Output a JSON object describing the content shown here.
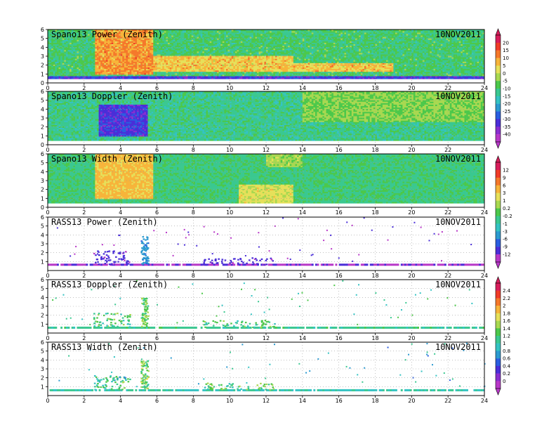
{
  "chart_data": [
    {
      "type": "heatmap",
      "title": "Spano13 Power (Zenith)",
      "date": "10NOV2011",
      "xlim": [
        0,
        24
      ],
      "ylim": [
        0,
        6
      ],
      "xticks": [
        0,
        2,
        4,
        6,
        8,
        10,
        12,
        14,
        16,
        18,
        20,
        22,
        24
      ],
      "yticks": [
        0,
        1,
        2,
        3,
        4,
        5,
        6
      ],
      "grid": true,
      "dense": true,
      "base": -10,
      "noise": 5,
      "features": [
        {
          "x0": 2.6,
          "x1": 5.8,
          "y0": 1.0,
          "y1": 6.0,
          "v": 8
        },
        {
          "x0": 5.8,
          "x1": 13.5,
          "y0": 1.3,
          "y1": 3.0,
          "v": 4
        },
        {
          "x0": 13.5,
          "x1": 19.0,
          "y0": 1.3,
          "y1": 2.2,
          "v": 4
        },
        {
          "x0": 0.0,
          "x1": 24.0,
          "y0": 0.4,
          "y1": 0.75,
          "v": -30
        }
      ]
    },
    {
      "type": "heatmap",
      "title": "Spano13 Doppler (Zenith)",
      "date": "10NOV2011",
      "xlim": [
        0,
        24
      ],
      "ylim": [
        0,
        6
      ],
      "xticks": [
        0,
        2,
        4,
        6,
        8,
        10,
        12,
        14,
        16,
        18,
        20,
        22,
        24
      ],
      "yticks": [
        0,
        1,
        2,
        3,
        4,
        5,
        6
      ],
      "grid": true,
      "dense": true,
      "base": -12,
      "noise": 4,
      "features": [
        {
          "x0": 2.8,
          "x1": 5.5,
          "y0": 1.0,
          "y1": 4.5,
          "v": -30
        },
        {
          "x0": 14.0,
          "x1": 24.0,
          "y0": 2.5,
          "y1": 6.0,
          "v": -5
        }
      ]
    },
    {
      "type": "heatmap",
      "title": "Spano13 Width (Zenith)",
      "date": "10NOV2011",
      "xlim": [
        0,
        24
      ],
      "ylim": [
        0,
        6
      ],
      "xticks": [
        0,
        2,
        4,
        6,
        8,
        10,
        12,
        14,
        16,
        18,
        20,
        22,
        24
      ],
      "yticks": [
        0,
        1,
        2,
        3,
        4,
        5,
        6
      ],
      "grid": true,
      "dense": true,
      "base": -1.5,
      "noise": 1.5,
      "features": [
        {
          "x0": 2.6,
          "x1": 5.8,
          "y0": 1.0,
          "y1": 6.0,
          "v": 6
        },
        {
          "x0": 10.5,
          "x1": 13.5,
          "y0": 0.5,
          "y1": 2.5,
          "v": 4
        },
        {
          "x0": 12.0,
          "x1": 14.0,
          "y0": 4.5,
          "y1": 6.0,
          "v": 2
        }
      ]
    },
    {
      "type": "scatter",
      "title": "RASS13 Power (Zenith)",
      "date": "10NOV2011",
      "xlim": [
        0,
        24
      ],
      "ylim": [
        0,
        6
      ],
      "xticks": [
        0,
        2,
        4,
        6,
        8,
        10,
        12,
        14,
        16,
        18,
        20,
        22,
        24
      ],
      "yticks": [
        1,
        2,
        3,
        4,
        5,
        6
      ],
      "grid": true,
      "dense": false,
      "base": -12,
      "noise": 1,
      "line_y": 0.65,
      "line_v": -12,
      "features": [
        {
          "x0": 2.5,
          "x1": 4.5,
          "y0": 0.7,
          "y1": 2.3,
          "v": -11,
          "density": 0.35
        },
        {
          "x0": 5.1,
          "x1": 5.5,
          "y0": 0.8,
          "y1": 4.0,
          "v": -7,
          "density": 0.9
        },
        {
          "x0": 8.5,
          "x1": 12.5,
          "y0": 0.7,
          "y1": 1.5,
          "v": -11,
          "density": 0.3
        }
      ]
    },
    {
      "type": "scatter",
      "title": "RASS13 Doppler (Zenith)",
      "date": "10NOV2011",
      "xlim": [
        0,
        24
      ],
      "ylim": [
        0,
        6
      ],
      "xticks": [
        0,
        2,
        4,
        6,
        8,
        10,
        12,
        14,
        16,
        18,
        20,
        22,
        24
      ],
      "yticks": [
        1,
        2,
        3,
        4,
        5,
        6
      ],
      "grid": true,
      "dense": false,
      "base": 1.1,
      "noise": 0.25,
      "line_y": 0.6,
      "line_v": 1.1,
      "features": [
        {
          "x0": 2.5,
          "x1": 4.5,
          "y0": 0.7,
          "y1": 2.3,
          "v": 1.2,
          "density": 0.35
        },
        {
          "x0": 5.1,
          "x1": 5.5,
          "y0": 0.8,
          "y1": 4.0,
          "v": 1.3,
          "density": 0.9
        },
        {
          "x0": 8.5,
          "x1": 12.5,
          "y0": 0.7,
          "y1": 1.5,
          "v": 1.2,
          "density": 0.3
        }
      ]
    },
    {
      "type": "scatter",
      "title": "RASS13 Width (Zenith)",
      "date": "10NOV2011",
      "xlim": [
        0,
        24
      ],
      "ylim": [
        0,
        6
      ],
      "xticks": [
        0,
        2,
        4,
        6,
        8,
        10,
        12,
        14,
        16,
        18,
        20,
        22,
        24
      ],
      "yticks": [
        1,
        2,
        3,
        4,
        5,
        6
      ],
      "grid": true,
      "dense": false,
      "base": 0.9,
      "noise": 0.3,
      "line_y": 0.6,
      "line_v": 1.0,
      "features": [
        {
          "x0": 2.5,
          "x1": 4.5,
          "y0": 0.7,
          "y1": 2.3,
          "v": 1.1,
          "density": 0.35
        },
        {
          "x0": 5.1,
          "x1": 5.5,
          "y0": 0.8,
          "y1": 4.0,
          "v": 1.3,
          "density": 0.9
        },
        {
          "x0": 8.5,
          "x1": 12.5,
          "y0": 0.7,
          "y1": 1.5,
          "v": 1.2,
          "density": 0.3
        }
      ]
    }
  ],
  "colorbars": [
    {
      "labels": [
        "20",
        "15",
        "10",
        "5",
        "0",
        "-5",
        "-10",
        "-15",
        "-20",
        "-25",
        "-30",
        "-35",
        "-40"
      ],
      "range": [
        -42,
        22
      ],
      "colors": [
        "#d81e5b",
        "#f03c28",
        "#f5782a",
        "#f7b43a",
        "#e6e05a",
        "#a8d850",
        "#4cc84a",
        "#3ac890",
        "#34c3c3",
        "#2c9ad0",
        "#2a5ee0",
        "#4a2ed8",
        "#8a2ed0",
        "#b838c8"
      ]
    },
    {
      "labels": [
        "12",
        "9",
        "6",
        "3",
        "1",
        "0.2",
        "-0.2",
        "-1",
        "-3",
        "-6",
        "-9",
        "-12"
      ],
      "range": [
        -14,
        14
      ],
      "colors": [
        "#d81e5b",
        "#f03c28",
        "#f5782a",
        "#f7b43a",
        "#e6e05a",
        "#a8d850",
        "#4cc84a",
        "#3ac890",
        "#34c3c3",
        "#2c9ad0",
        "#2a5ee0",
        "#4a2ed8",
        "#b838c8"
      ]
    },
    {
      "labels": [
        "2.4",
        "2.2",
        "2",
        "1.8",
        "1.6",
        "1.4",
        "1.2",
        "1",
        "0.8",
        "0.6",
        "0.4",
        "0.2",
        "0"
      ],
      "range": [
        -0.1,
        2.5
      ],
      "colors": [
        "#d81e5b",
        "#f03c28",
        "#f5782a",
        "#f7b43a",
        "#e6e05a",
        "#a8d850",
        "#4cc84a",
        "#3ac890",
        "#34c3c3",
        "#2c9ad0",
        "#2a5ee0",
        "#4a2ed8",
        "#8a2ed0",
        "#b838c8"
      ]
    }
  ]
}
